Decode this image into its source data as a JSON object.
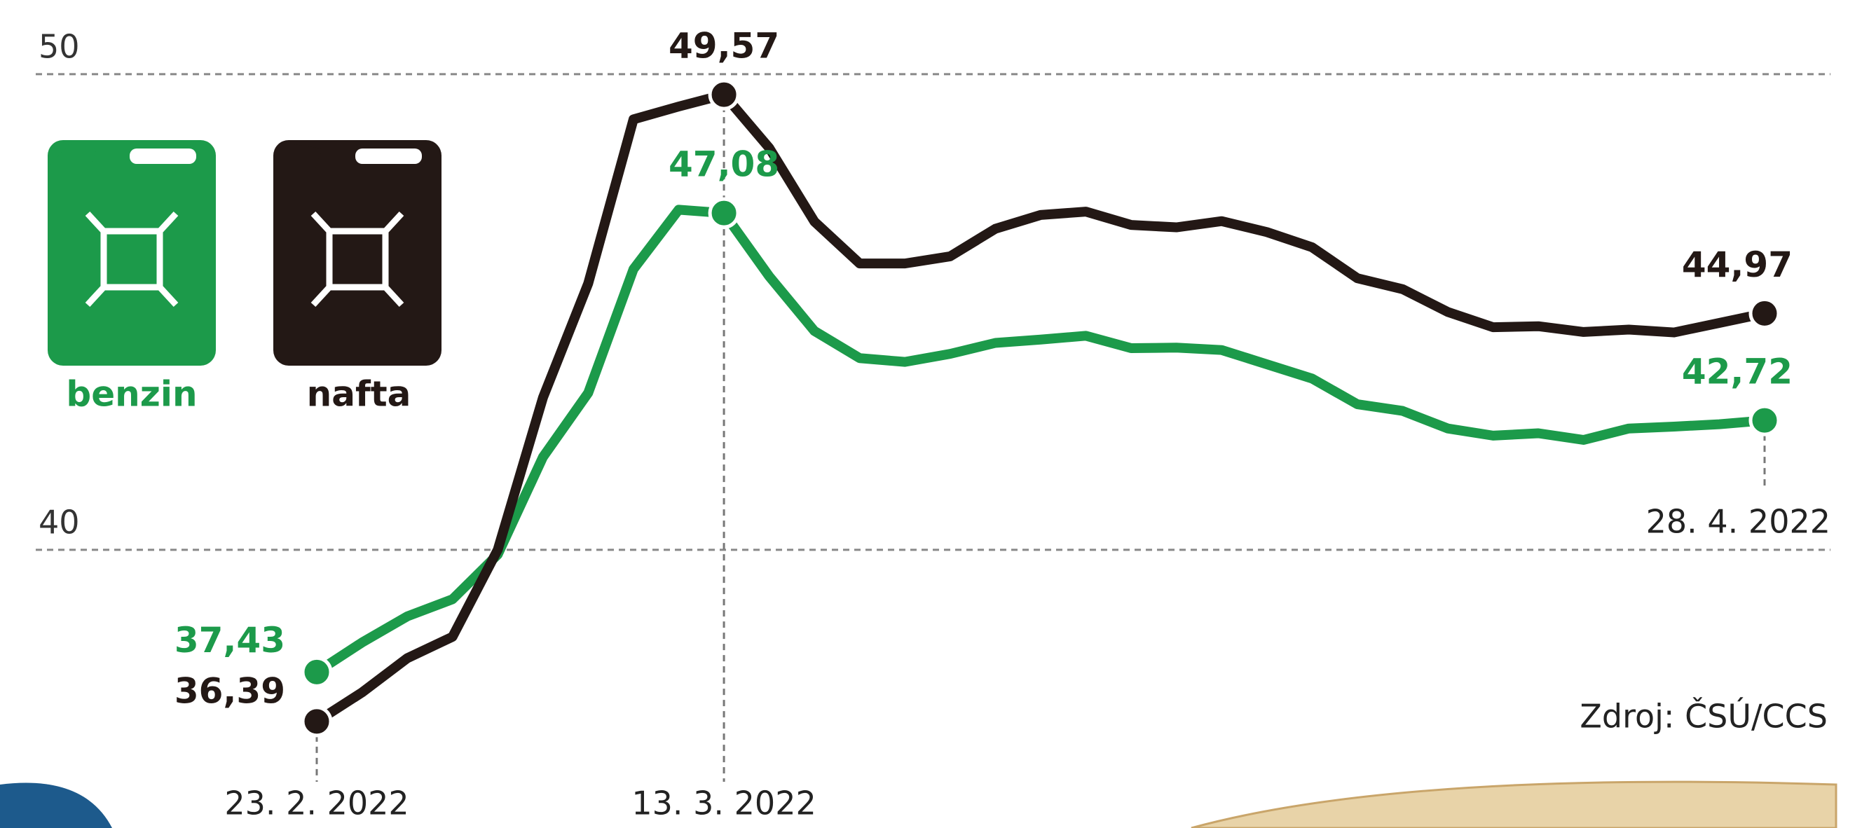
{
  "chart_data": {
    "type": "line",
    "categories": [
      "23. 2. 2022",
      null,
      null,
      null,
      null,
      null,
      null,
      null,
      null,
      "13. 3. 2022",
      null,
      null,
      null,
      null,
      null,
      null,
      null,
      null,
      null,
      null,
      null,
      null,
      null,
      null,
      null,
      null,
      null,
      null,
      null,
      null,
      null,
      null,
      "28. 4. 2022"
    ],
    "series": [
      {
        "name": "benzin",
        "color": "#1c9a4a",
        "values": [
          37.43,
          38.05,
          38.6,
          38.96,
          39.9,
          41.95,
          43.3,
          45.9,
          47.15,
          47.08,
          45.75,
          44.6,
          44.03,
          43.95,
          44.12,
          44.35,
          44.42,
          44.5,
          44.24,
          44.25,
          44.2,
          43.9,
          43.6,
          43.06,
          42.92,
          42.55,
          42.4,
          42.45,
          42.31,
          42.55,
          42.59,
          42.64,
          42.72
        ],
        "value_labels": [
          "37,43",
          null,
          null,
          null,
          null,
          null,
          null,
          null,
          null,
          "47,08",
          null,
          null,
          null,
          null,
          null,
          null,
          null,
          null,
          null,
          null,
          null,
          null,
          null,
          null,
          null,
          null,
          null,
          null,
          null,
          null,
          null,
          null,
          "42,72"
        ]
      },
      {
        "name": "nafta",
        "color": "#231815",
        "values": [
          36.39,
          37.0,
          37.72,
          38.17,
          40.0,
          43.2,
          45.6,
          49.05,
          49.32,
          49.57,
          48.45,
          46.9,
          46.02,
          46.02,
          46.17,
          46.75,
          47.04,
          47.11,
          46.83,
          46.78,
          46.91,
          46.68,
          46.36,
          45.71,
          45.48,
          45.0,
          44.68,
          44.7,
          44.58,
          44.63,
          44.57,
          44.77,
          44.97
        ],
        "value_labels": [
          "36,39",
          null,
          null,
          null,
          null,
          null,
          null,
          null,
          null,
          "49,57",
          null,
          null,
          null,
          null,
          null,
          null,
          null,
          null,
          null,
          null,
          null,
          null,
          null,
          null,
          null,
          null,
          null,
          null,
          null,
          null,
          null,
          null,
          "44,97"
        ]
      }
    ],
    "ylim": [
      34.15,
      51.56
    ],
    "yticks": [
      40,
      50
    ],
    "grid": true,
    "source": "Zdroj: ČSÚ/CCS"
  }
}
